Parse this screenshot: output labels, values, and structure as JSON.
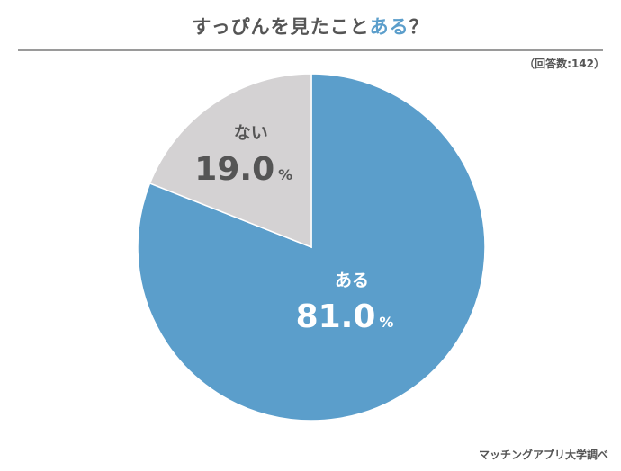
{
  "header": {
    "title_main": "すっぴんを見たこと",
    "title_accent": "ある",
    "title_end": "？",
    "respondents_note": "（回答数:142）"
  },
  "footer": {
    "source": "マッチングアプリ大学調べ"
  },
  "chart_data": {
    "type": "pie",
    "categories": [
      "ある",
      "ない"
    ],
    "values": [
      81.0,
      19.0
    ],
    "value_labels": [
      "81.0",
      "19.0"
    ],
    "unit": "%",
    "colors": [
      "#5b9ecb",
      "#d4d2d3"
    ],
    "label_colors": [
      "#ffffff",
      "#555555"
    ],
    "start": "12 o'clock",
    "direction": "clockwise"
  }
}
